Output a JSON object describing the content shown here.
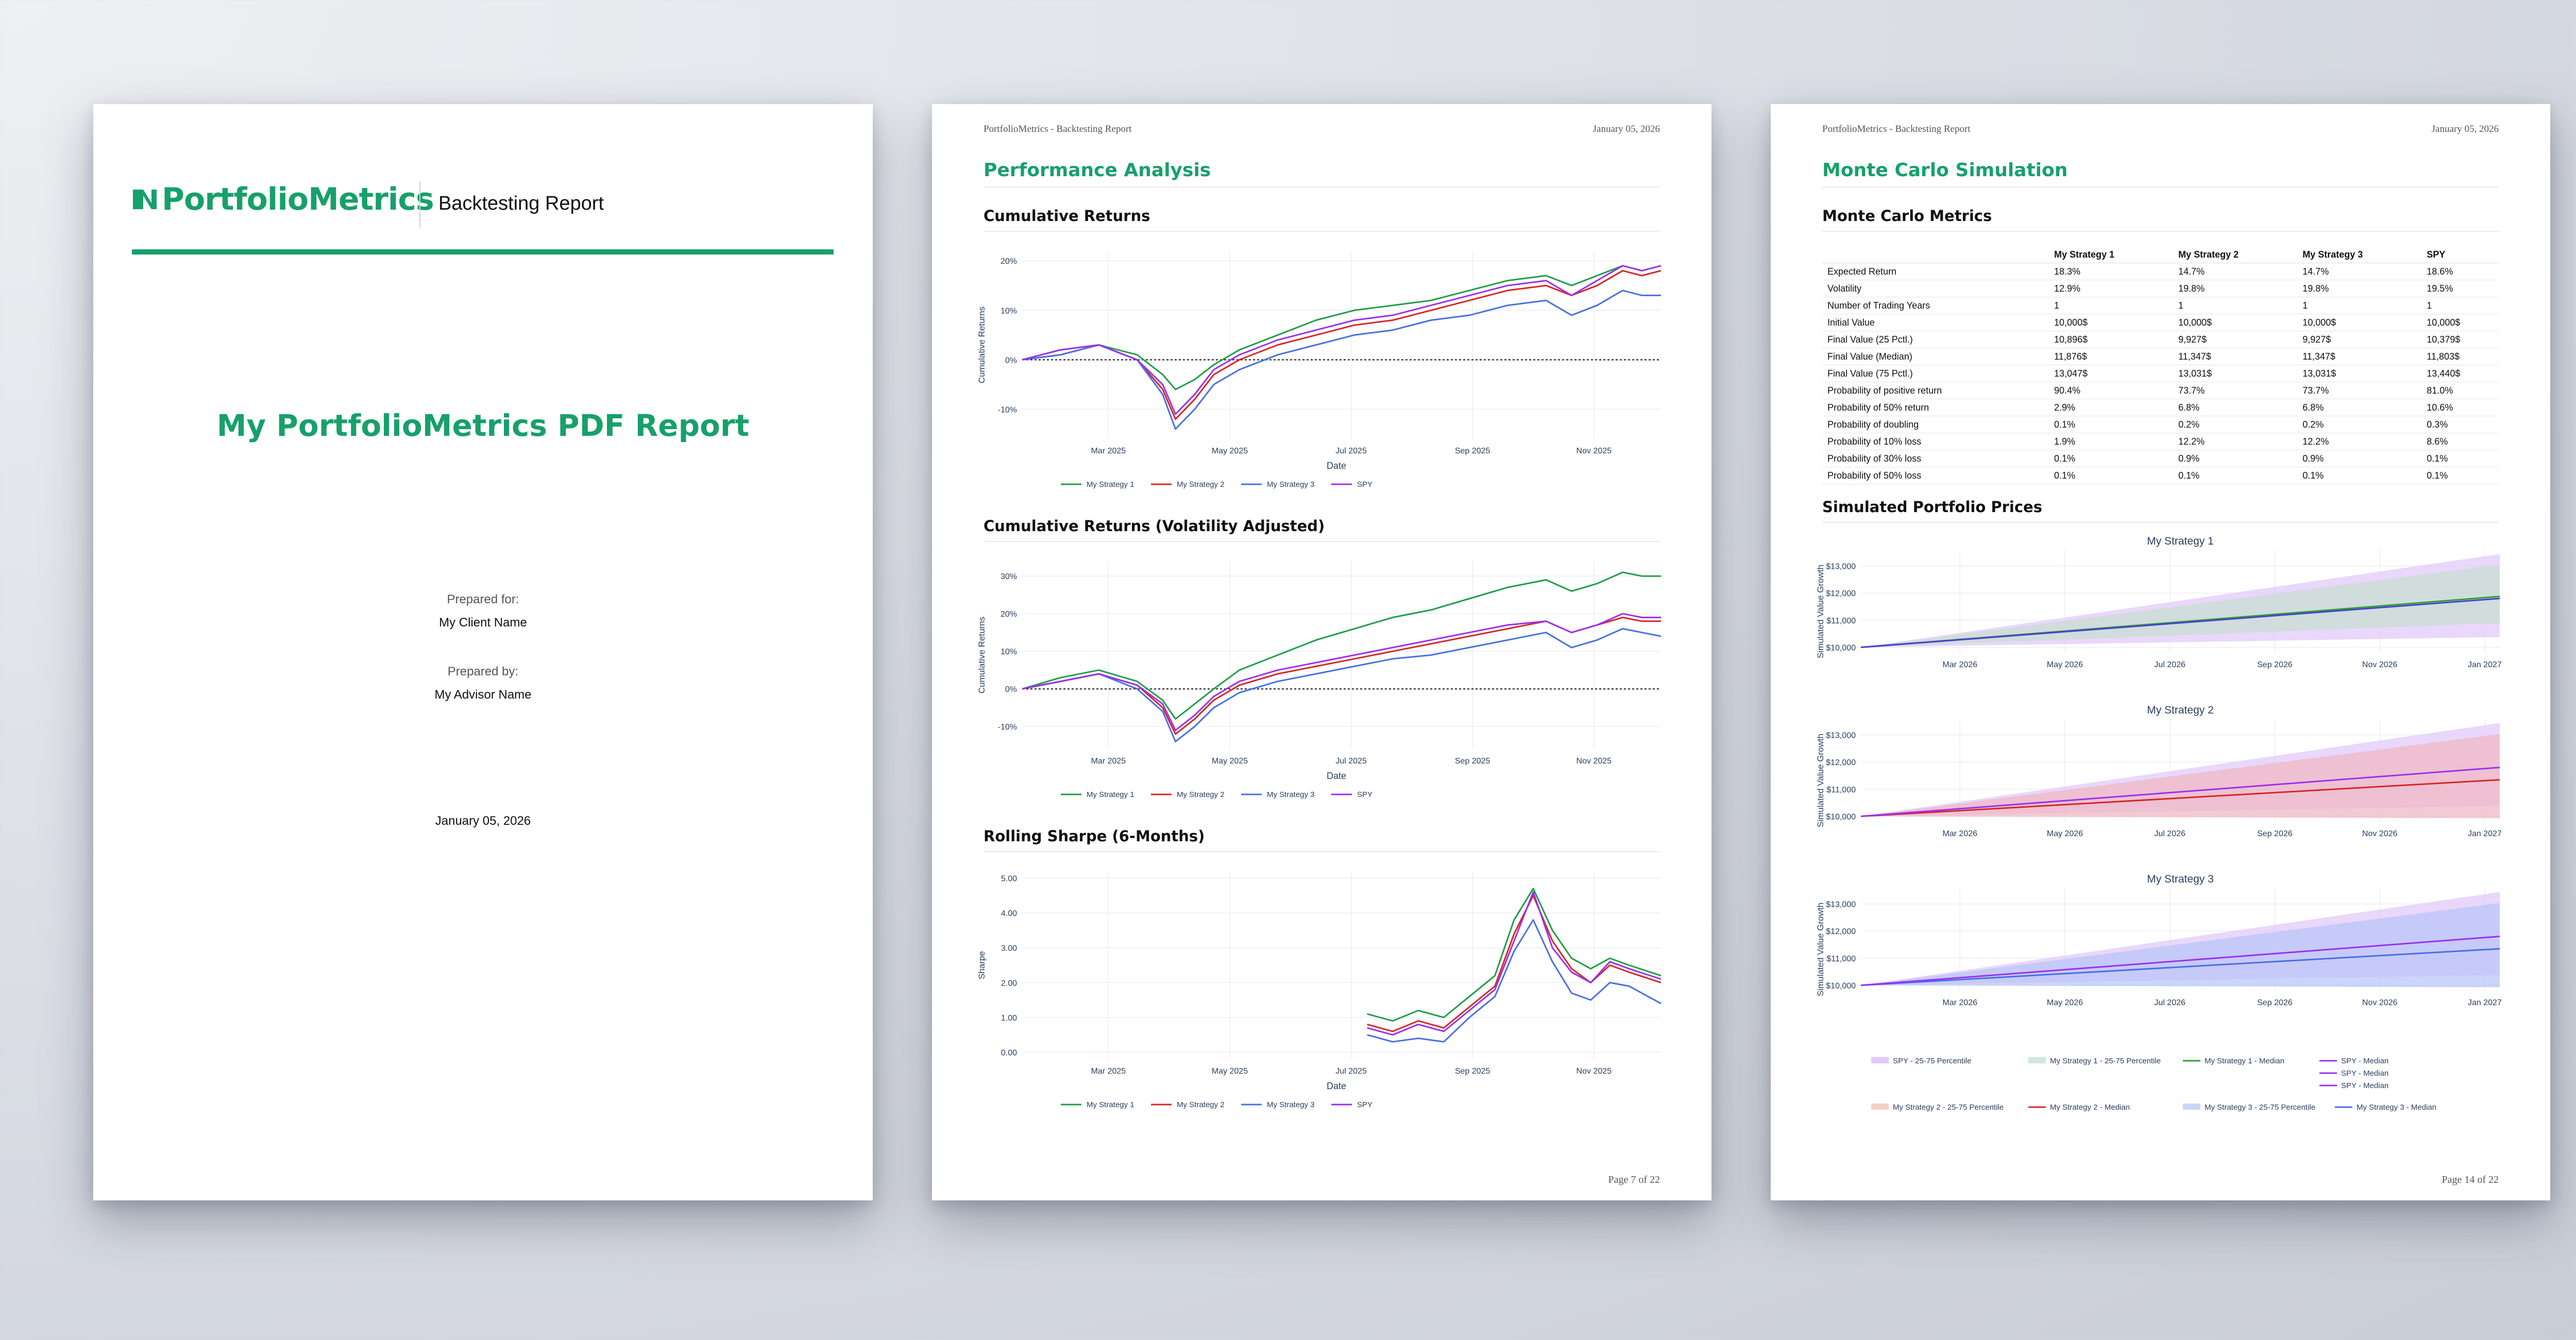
{
  "cover": {
    "logo_text": "PortfolioMetrics",
    "report_type": "Backtesting Report",
    "title": "My PortfolioMetrics PDF Report",
    "prepared_for_label": "Prepared for:",
    "client_name": "My Client Name",
    "prepared_by_label": "Prepared by:",
    "advisor_name": "My Advisor Name",
    "date": "January 05, 2026",
    "brand_color": "#17a06b"
  },
  "performance_page": {
    "header_left": "PortfolioMetrics - Backtesting Report",
    "header_right": "January 05, 2026",
    "section_title": "Performance Analysis",
    "footer": "Page 7 of 22",
    "chart1_title": "Cumulative Returns",
    "chart2_title": "Cumulative Returns (Volatility Adjusted)",
    "chart3_title": "Rolling Sharpe (6-Months)"
  },
  "montecarlo_page": {
    "header_left": "PortfolioMetrics - Backtesting Report",
    "header_right": "January 05, 2026",
    "section_title": "Monte Carlo Simulation",
    "metrics_title": "Monte Carlo Metrics",
    "prices_title": "Simulated Portfolio Prices",
    "footer": "Page 14 of 22",
    "table": {
      "columns": [
        "",
        "My Strategy 1",
        "My Strategy 2",
        "My Strategy 3",
        "SPY"
      ],
      "rows": [
        [
          "Expected Return",
          "18.3%",
          "14.7%",
          "14.7%",
          "18.6%"
        ],
        [
          "Volatility",
          "12.9%",
          "19.8%",
          "19.8%",
          "19.5%"
        ],
        [
          "Number of Trading Years",
          "1",
          "1",
          "1",
          "1"
        ],
        [
          "Initial Value",
          "10,000$",
          "10,000$",
          "10,000$",
          "10,000$"
        ],
        [
          "Final Value (25 Pctl.)",
          "10,896$",
          "9,927$",
          "9,927$",
          "10,379$"
        ],
        [
          "Final Value (Median)",
          "11,876$",
          "11,347$",
          "11,347$",
          "11,803$"
        ],
        [
          "Final Value (75 Pctl.)",
          "13,047$",
          "13,031$",
          "13,031$",
          "13,440$"
        ],
        [
          "Probability of positive return",
          "90.4%",
          "73.7%",
          "73.7%",
          "81.0%"
        ],
        [
          "Probability of 50% return",
          "2.9%",
          "6.8%",
          "6.8%",
          "10.6%"
        ],
        [
          "Probability of doubling",
          "0.1%",
          "0.2%",
          "0.2%",
          "0.3%"
        ],
        [
          "Probability of 10% loss",
          "1.9%",
          "12.2%",
          "12.2%",
          "8.6%"
        ],
        [
          "Probability of 30% loss",
          "0.1%",
          "0.9%",
          "0.9%",
          "0.1%"
        ],
        [
          "Probability of 50% loss",
          "0.1%",
          "0.1%",
          "0.1%",
          "0.1%"
        ]
      ]
    },
    "mc_legend": [
      {
        "label": "SPY - 25-75 Percentile",
        "color": "#e2c9fb",
        "kind": "band"
      },
      {
        "label": "My Strategy 1 - 25-75 Percentile",
        "color": "#cfe9dc",
        "kind": "band"
      },
      {
        "label": "My Strategy 1 - Median",
        "color": "#2ca02c",
        "kind": "line"
      },
      {
        "label": "SPY - Median",
        "color": "#9b30f0",
        "kind": "line"
      },
      {
        "label": "SPY - Median",
        "color": "#9b30f0",
        "kind": "line"
      },
      {
        "label": "SPY - Median",
        "color": "#9b30f0",
        "kind": "line"
      },
      {
        "label": "My Strategy 2 - 25-75 Percentile",
        "color": "#f6d0c6",
        "kind": "band"
      },
      {
        "label": "My Strategy 2 - Median",
        "color": "#d62728",
        "kind": "line"
      },
      {
        "label": "My Strategy 3 - 25-75 Percentile",
        "color": "#c9d7f7",
        "kind": "band"
      },
      {
        "label": "My Strategy 3 - Median",
        "color": "#4a6fe3",
        "kind": "line"
      }
    ]
  },
  "chart_data": [
    {
      "type": "line",
      "title": "Cumulative Returns",
      "xlabel": "Date",
      "ylabel": "Cumulative Returns",
      "x_ticks": [
        "Mar 2025",
        "May 2025",
        "Jul 2025",
        "Sep 2025",
        "Nov 2025"
      ],
      "y_ticks": [
        "20%",
        "10%",
        "0%",
        "-10%"
      ],
      "ylim": [
        -16,
        22
      ],
      "x_range": [
        "Jan 2025",
        "Dec 2025"
      ],
      "zero_line": true,
      "grid": true,
      "legend_position": "bottom",
      "x_positions": [
        0,
        0.06,
        0.12,
        0.18,
        0.22,
        0.24,
        0.27,
        0.3,
        0.34,
        0.4,
        0.46,
        0.52,
        0.58,
        0.64,
        0.7,
        0.76,
        0.82,
        0.86,
        0.9,
        0.94,
        0.97,
        1
      ],
      "series": [
        {
          "name": "My Strategy 1",
          "color": "#1f9e47",
          "values": [
            0,
            2,
            3,
            1,
            -3,
            -6,
            -4,
            -1,
            2,
            5,
            8,
            10,
            11,
            12,
            14,
            16,
            17,
            15,
            17,
            19,
            18,
            19
          ]
        },
        {
          "name": "My Strategy 2",
          "color": "#d62728",
          "values": [
            0,
            1,
            3,
            0,
            -6,
            -12,
            -8,
            -3,
            0,
            3,
            5,
            7,
            8,
            10,
            12,
            14,
            15,
            13,
            15,
            18,
            17,
            18
          ]
        },
        {
          "name": "My Strategy 3",
          "color": "#4a6fe3",
          "values": [
            0,
            1,
            3,
            0,
            -7,
            -14,
            -10,
            -5,
            -2,
            1,
            3,
            5,
            6,
            8,
            9,
            11,
            12,
            9,
            11,
            14,
            13,
            13
          ]
        },
        {
          "name": "SPY",
          "color": "#9b30f0",
          "values": [
            0,
            2,
            3,
            0,
            -5,
            -11,
            -7,
            -2,
            1,
            4,
            6,
            8,
            9,
            11,
            13,
            15,
            16,
            13,
            16,
            19,
            18,
            19
          ]
        }
      ]
    },
    {
      "type": "line",
      "title": "Cumulative Returns (Volatility Adjusted)",
      "xlabel": "Date",
      "ylabel": "Cumulative Returns",
      "x_ticks": [
        "Mar 2025",
        "May 2025",
        "Jul 2025",
        "Sep 2025",
        "Nov 2025"
      ],
      "y_ticks": [
        "30%",
        "20%",
        "10%",
        "0%",
        "-10%"
      ],
      "ylim": [
        -16,
        34
      ],
      "x_range": [
        "Jan 2025",
        "Dec 2025"
      ],
      "zero_line": true,
      "grid": true,
      "legend_position": "bottom",
      "x_positions": [
        0,
        0.06,
        0.12,
        0.18,
        0.22,
        0.24,
        0.27,
        0.3,
        0.34,
        0.4,
        0.46,
        0.52,
        0.58,
        0.64,
        0.7,
        0.76,
        0.82,
        0.86,
        0.9,
        0.94,
        0.97,
        1
      ],
      "series": [
        {
          "name": "My Strategy 1",
          "color": "#1f9e47",
          "values": [
            0,
            3,
            5,
            2,
            -3,
            -8,
            -4,
            0,
            5,
            9,
            13,
            16,
            19,
            21,
            24,
            27,
            29,
            26,
            28,
            31,
            30,
            30
          ]
        },
        {
          "name": "My Strategy 2",
          "color": "#d62728",
          "values": [
            0,
            2,
            4,
            1,
            -5,
            -12,
            -8,
            -3,
            1,
            4,
            6,
            8,
            10,
            12,
            14,
            16,
            18,
            15,
            17,
            19,
            18,
            18
          ]
        },
        {
          "name": "My Strategy 3",
          "color": "#4a6fe3",
          "values": [
            0,
            2,
            4,
            0,
            -6,
            -14,
            -10,
            -5,
            -1,
            2,
            4,
            6,
            8,
            9,
            11,
            13,
            15,
            11,
            13,
            16,
            15,
            14
          ]
        },
        {
          "name": "SPY",
          "color": "#9b30f0",
          "values": [
            0,
            2,
            4,
            1,
            -4,
            -11,
            -7,
            -2,
            2,
            5,
            7,
            9,
            11,
            13,
            15,
            17,
            18,
            15,
            17,
            20,
            19,
            19
          ]
        }
      ]
    },
    {
      "type": "line",
      "title": "Rolling Sharpe (6-Months)",
      "xlabel": "Date",
      "ylabel": "Sharpe",
      "x_ticks": [
        "Mar 2025",
        "May 2025",
        "Jul 2025",
        "Sep 2025",
        "Nov 2025"
      ],
      "y_ticks": [
        "5.00",
        "4.00",
        "3.00",
        "2.00",
        "1.00",
        "0.00"
      ],
      "ylim": [
        -0.2,
        5.2
      ],
      "x_range": [
        "Jan 2025",
        "Dec 2025"
      ],
      "grid": true,
      "legend_position": "bottom",
      "x_positions": [
        0.54,
        0.58,
        0.62,
        0.66,
        0.7,
        0.74,
        0.77,
        0.8,
        0.83,
        0.86,
        0.89,
        0.92,
        0.95,
        1
      ],
      "series": [
        {
          "name": "My Strategy 1",
          "color": "#1f9e47",
          "values": [
            1.1,
            0.9,
            1.2,
            1.0,
            1.6,
            2.2,
            3.8,
            4.7,
            3.5,
            2.7,
            2.4,
            2.7,
            2.5,
            2.2
          ]
        },
        {
          "name": "My Strategy 2",
          "color": "#d62728",
          "values": [
            0.8,
            0.6,
            0.9,
            0.7,
            1.3,
            1.9,
            3.4,
            4.5,
            3.2,
            2.4,
            2.0,
            2.5,
            2.3,
            2.0
          ]
        },
        {
          "name": "My Strategy 3",
          "color": "#4a6fe3",
          "values": [
            0.5,
            0.3,
            0.4,
            0.3,
            1.0,
            1.6,
            2.9,
            3.8,
            2.6,
            1.7,
            1.5,
            2.0,
            1.9,
            1.4
          ]
        },
        {
          "name": "SPY",
          "color": "#9b30f0",
          "values": [
            0.7,
            0.5,
            0.8,
            0.6,
            1.2,
            1.8,
            3.2,
            4.6,
            3.0,
            2.3,
            2.0,
            2.6,
            2.4,
            2.1
          ]
        }
      ]
    },
    {
      "type": "area",
      "title": "My Strategy 1",
      "ylabel": "Simulated Value Growth",
      "x_ticks": [
        "Mar 2026",
        "May 2026",
        "Jul 2026",
        "Sep 2026",
        "Nov 2026",
        "Jan 2027"
      ],
      "y_ticks": [
        "$13,000",
        "$12,000",
        "$11,000",
        "$10,000"
      ],
      "ylim": [
        9800,
        13600
      ],
      "bands": [
        {
          "name": "SPY - 25-75 Percentile",
          "color": "#e2c9fb",
          "start": 10000,
          "low_end": 10379,
          "high_end": 13440
        },
        {
          "name": "My Strategy 1 - 25-75 Percentile",
          "color": "#c8ddd2",
          "start": 10000,
          "low_end": 10896,
          "high_end": 13047
        }
      ],
      "series": [
        {
          "name": "My Strategy 1 - Median",
          "color": "#2ca02c",
          "start": 10000,
          "end": 11876
        },
        {
          "name": "SPY - Median",
          "color": "#4a3fd8",
          "start": 10000,
          "end": 11803
        }
      ]
    },
    {
      "type": "area",
      "title": "My Strategy 2",
      "ylabel": "Simulated Value Growth",
      "x_ticks": [
        "Mar 2026",
        "May 2026",
        "Jul 2026",
        "Sep 2026",
        "Nov 2026",
        "Jan 2027"
      ],
      "y_ticks": [
        "$13,000",
        "$12,000",
        "$11,000",
        "$10,000"
      ],
      "ylim": [
        9800,
        13600
      ],
      "bands": [
        {
          "name": "SPY - 25-75 Percentile",
          "color": "#e2c9fb",
          "start": 10000,
          "low_end": 10379,
          "high_end": 13440
        },
        {
          "name": "My Strategy 2 - 25-75 Percentile",
          "color": "#efb8c4",
          "start": 10000,
          "low_end": 9927,
          "high_end": 13031
        }
      ],
      "series": [
        {
          "name": "My Strategy 2 - Median",
          "color": "#d62728",
          "start": 10000,
          "end": 11347
        },
        {
          "name": "SPY - Median",
          "color": "#9b30f0",
          "start": 10000,
          "end": 11803
        }
      ]
    },
    {
      "type": "area",
      "title": "My Strategy 3",
      "ylabel": "Simulated Value Growth",
      "x_ticks": [
        "Mar 2026",
        "May 2026",
        "Jul 2026",
        "Sep 2026",
        "Nov 2026",
        "Jan 2027"
      ],
      "y_ticks": [
        "$13,000",
        "$12,000",
        "$11,000",
        "$10,000"
      ],
      "ylim": [
        9800,
        13600
      ],
      "bands": [
        {
          "name": "SPY - 25-75 Percentile",
          "color": "#e2c9fb",
          "start": 10000,
          "low_end": 10379,
          "high_end": 13440
        },
        {
          "name": "My Strategy 3 - 25-75 Percentile",
          "color": "#b9c6f7",
          "start": 10000,
          "low_end": 9927,
          "high_end": 13031
        }
      ],
      "series": [
        {
          "name": "My Strategy 3 - Median",
          "color": "#4a6fe3",
          "start": 10000,
          "end": 11347
        },
        {
          "name": "SPY - Median",
          "color": "#9b30f0",
          "start": 10000,
          "end": 11803
        }
      ]
    }
  ]
}
